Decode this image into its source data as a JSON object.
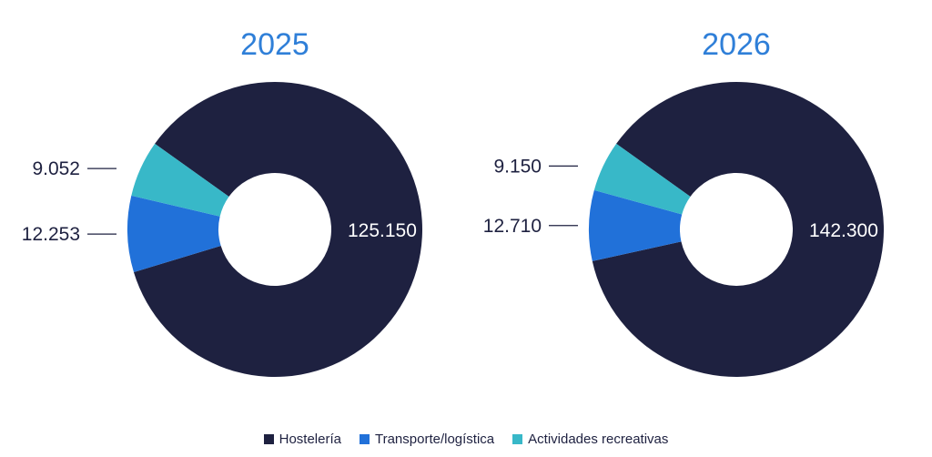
{
  "colors": {
    "hosteleria": "#1e2140",
    "transporte": "#2171d9",
    "actividades": "#38b8c8",
    "title": "#2f7fd8",
    "label_dark": "#1e2140",
    "label_light": "#ffffff"
  },
  "chart_data": [
    {
      "type": "pie",
      "title": "2025",
      "categories": [
        "Hostelería",
        "Transporte/logística",
        "Actividades recreativas"
      ],
      "values": [
        125150,
        12253,
        9052
      ],
      "data_labels": [
        "125.150",
        "12.253",
        "9.052"
      ]
    },
    {
      "type": "pie",
      "title": "2026",
      "categories": [
        "Hostelería",
        "Transporte/logística",
        "Actividades recreativas"
      ],
      "values": [
        142300,
        12710,
        9150
      ],
      "data_labels": [
        "142.300",
        "12.710",
        "9.150"
      ]
    }
  ],
  "legend": {
    "placement": "bottom",
    "items": [
      {
        "label": "Hostelería",
        "color_key": "hosteleria"
      },
      {
        "label": "Transporte/logística",
        "color_key": "transporte"
      },
      {
        "label": "Actividades recreativas",
        "color_key": "actividades"
      }
    ]
  }
}
